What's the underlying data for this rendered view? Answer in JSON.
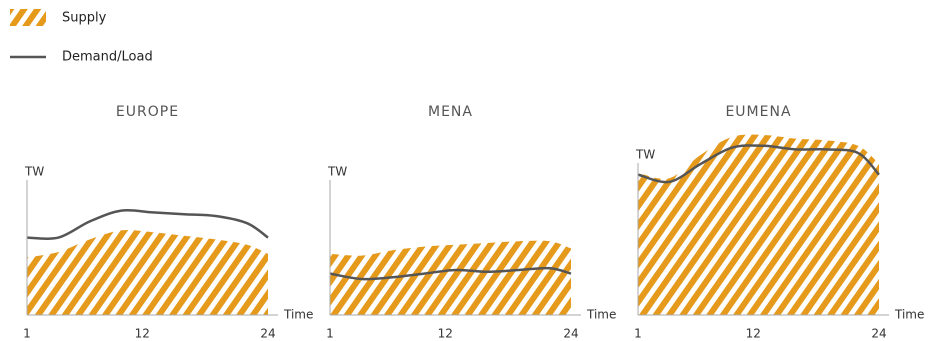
{
  "legend": [
    {
      "name": "Supply",
      "color": "#e59a1c"
    },
    {
      "name": "Demand/Load",
      "color": "#555555"
    }
  ],
  "chart_data": [
    {
      "type": "area-line",
      "title": "EUROPE",
      "ylabel": "TW",
      "xlabel": "Time",
      "x": [
        1,
        4,
        7,
        10,
        13,
        16,
        19,
        22,
        24
      ],
      "supply": [
        32,
        35,
        42,
        47,
        46,
        44,
        42,
        39,
        34
      ],
      "demand": [
        43,
        43,
        52,
        58,
        57,
        56,
        55,
        51,
        43
      ],
      "xlim": [
        1,
        24
      ],
      "xticks": [
        1,
        12,
        24
      ],
      "ylim": [
        0,
        100
      ]
    },
    {
      "type": "area-line",
      "title": "MENA",
      "ylabel": "TW",
      "xlabel": "Time",
      "x": [
        1,
        4,
        7,
        10,
        13,
        16,
        19,
        22,
        24
      ],
      "supply": [
        34,
        33,
        36,
        38,
        39,
        40,
        41,
        41,
        37
      ],
      "demand": [
        23,
        20,
        21,
        23,
        25,
        24,
        25,
        26,
        23
      ],
      "xlim": [
        1,
        24
      ],
      "xticks": [
        1,
        12,
        24
      ],
      "ylim": [
        0,
        100
      ]
    },
    {
      "type": "area-line",
      "title": "EUMENA",
      "ylabel": "TW",
      "xlabel": "Time",
      "x": [
        1,
        4,
        7,
        10,
        13,
        16,
        19,
        22,
        24
      ],
      "supply": [
        79,
        76,
        89,
        99,
        100,
        98,
        97,
        94,
        84
      ],
      "demand": [
        78,
        74,
        84,
        93,
        94,
        92,
        92,
        90,
        78
      ],
      "xlim": [
        1,
        24
      ],
      "xticks": [
        1,
        12,
        24
      ],
      "ylim": [
        0,
        100
      ]
    }
  ]
}
